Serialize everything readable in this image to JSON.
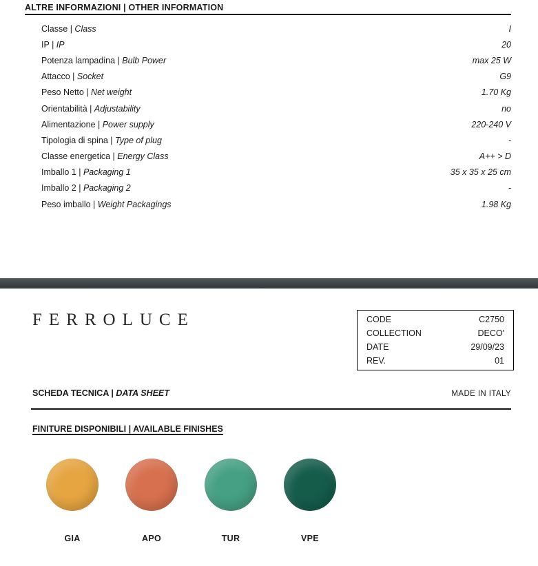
{
  "separators": {
    "pipe": " | "
  },
  "section_top": {
    "heading": "ALTRE INFORMAZIONI | OTHER INFORMATION",
    "rows": [
      {
        "label_it": "Classe",
        "label_en": "Class",
        "value": "I"
      },
      {
        "label_it": "IP",
        "label_en": "IP",
        "value": "20"
      },
      {
        "label_it": "Potenza lampadina",
        "label_en": "Bulb Power",
        "value": "max 25 W"
      },
      {
        "label_it": "Attacco",
        "label_en": "Socket",
        "value": "G9"
      },
      {
        "label_it": "Peso Netto",
        "label_en": "Net weight",
        "value": "1.70 Kg"
      },
      {
        "label_it": "Orientabilità",
        "label_en": "Adjustability",
        "value": "no"
      },
      {
        "label_it": "Alimentazione",
        "label_en": "Power supply",
        "value": "220-240 V"
      },
      {
        "label_it": "Tipologia di spina",
        "label_en": "Type of plug",
        "value": "-"
      },
      {
        "label_it": "Classe energetica",
        "label_en": "Energy Class",
        "value": "A++ > D"
      },
      {
        "label_it": "Imballo 1",
        "label_en": "Packaging 1",
        "value": "35 x 35 x 25 cm"
      },
      {
        "label_it": "Imballo 2",
        "label_en": "Packaging 2",
        "value": "-"
      },
      {
        "label_it": "Peso imballo",
        "label_en": "Weight Packagings",
        "value": "1.98 Kg"
      }
    ]
  },
  "colors": {
    "divider_bar": "#3F4547"
  },
  "brand": {
    "logo": "FERROLUCE"
  },
  "info_box": {
    "rows": [
      {
        "label": "CODE",
        "value": "C2750"
      },
      {
        "label": "COLLECTION",
        "value": "DECO'"
      },
      {
        "label": "DATE",
        "value": "29/09/23"
      },
      {
        "label": "REV.",
        "value": "01"
      }
    ]
  },
  "subheader": {
    "title_it": "SCHEDA TECNICA",
    "title_en": "DATA SHEET",
    "made_in": "MADE IN ITALY"
  },
  "finishes": {
    "heading": "FINITURE DISPONIBILI | AVAILABLE FINISHES",
    "items": [
      {
        "code": "GIA",
        "color": "#E6A541"
      },
      {
        "code": "APO",
        "color": "#D7704E"
      },
      {
        "code": "TUR",
        "color": "#46A083"
      },
      {
        "code": "VPE",
        "color": "#155C4B"
      }
    ]
  }
}
